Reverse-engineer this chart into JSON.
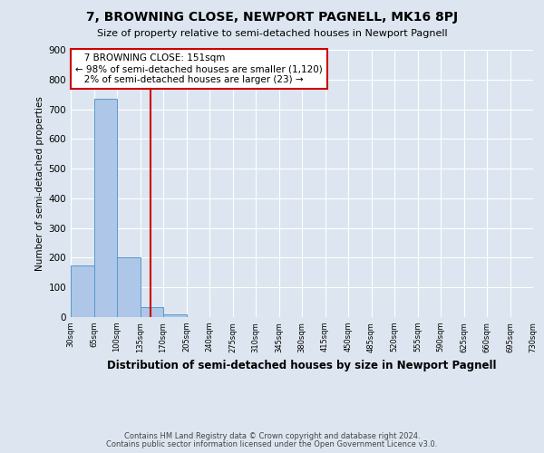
{
  "title": "7, BROWNING CLOSE, NEWPORT PAGNELL, MK16 8PJ",
  "subtitle": "Size of property relative to semi-detached houses in Newport Pagnell",
  "xlabel": "Distribution of semi-detached houses by size in Newport Pagnell",
  "ylabel": "Number of semi-detached properties",
  "footnote1": "Contains HM Land Registry data © Crown copyright and database right 2024.",
  "footnote2": "Contains public sector information licensed under the Open Government Licence v3.0.",
  "annotation_title": "7 BROWNING CLOSE: 151sqm",
  "annotation_line1": "← 98% of semi-detached houses are smaller (1,120)",
  "annotation_line2": "2% of semi-detached houses are larger (23) →",
  "property_size": 151,
  "bar_edges": [
    30,
    65,
    100,
    135,
    170,
    205,
    240,
    275,
    310,
    345,
    380,
    415,
    450,
    485,
    520,
    555,
    590,
    625,
    660,
    695,
    730
  ],
  "bar_heights": [
    175,
    735,
    200,
    35,
    10,
    0,
    0,
    0,
    0,
    0,
    0,
    0,
    0,
    0,
    0,
    0,
    0,
    0,
    0,
    0
  ],
  "bar_color": "#aec6e8",
  "bar_edge_color": "#5599cc",
  "vline_color": "#cc0000",
  "vline_x": 151,
  "annotation_box_color": "#cc0000",
  "background_color": "#dde6f0",
  "ylim": [
    0,
    900
  ],
  "yticks": [
    0,
    100,
    200,
    300,
    400,
    500,
    600,
    700,
    800,
    900
  ],
  "title_fontsize": 10,
  "subtitle_fontsize": 8,
  "xlabel_fontsize": 8.5,
  "ylabel_fontsize": 7.5,
  "annotation_fontsize": 7.5
}
